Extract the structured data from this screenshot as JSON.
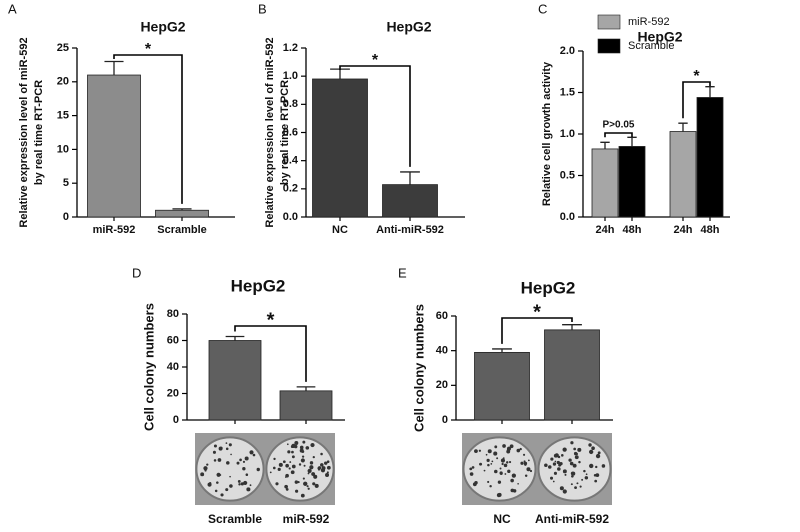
{
  "chart_data": [
    {
      "type": "bar",
      "panel_label": "A",
      "title": "HepG2",
      "ylabel": [
        "Relative expression level of miR-592",
        "by real time RT-PCR"
      ],
      "categories": [
        "miR-592",
        "Scramble"
      ],
      "values": [
        21,
        1
      ],
      "errors": [
        2,
        0.2
      ],
      "color": "#8c8c8c",
      "ylim": [
        0,
        25
      ],
      "yticks": [
        0,
        5,
        10,
        15,
        20,
        25
      ],
      "annotations": [
        "*"
      ]
    },
    {
      "type": "bar",
      "panel_label": "B",
      "title": "HepG2",
      "ylabel": [
        "Relative expression level of miR-592",
        "by real time RT-PCR"
      ],
      "categories": [
        "NC",
        "Anti-miR-592"
      ],
      "values": [
        0.98,
        0.23
      ],
      "errors": [
        0.07,
        0.09
      ],
      "color": "#3c3c3c",
      "ylim": [
        0,
        1.2
      ],
      "yticks": [
        {
          "value": 0,
          "label": "0.0"
        },
        0.2,
        0.4,
        0.6,
        0.8,
        {
          "value": 1,
          "label": "1.0"
        },
        1.2
      ],
      "annotations": [
        "*"
      ]
    },
    {
      "type": "bar",
      "panel_label": "C",
      "title": "HepG2",
      "ylabel": [
        "Relative cell growth activity"
      ],
      "categories": [
        "24h",
        "48h",
        "24h",
        "48h"
      ],
      "series": [
        {
          "name": "miR-592",
          "color": "#a6a6a6",
          "values": [
            0.82,
            null,
            1.03,
            null
          ],
          "errors": [
            0.08,
            null,
            0.1,
            null
          ]
        },
        {
          "name": "Scramble",
          "color": "#000000",
          "values": [
            null,
            0.85,
            null,
            1.44
          ],
          "errors": [
            null,
            0.11,
            null,
            0.13
          ]
        }
      ],
      "ylim": [
        0,
        2
      ],
      "yticks": [
        {
          "value": 0,
          "label": "0.0"
        },
        0.5,
        {
          "value": 1,
          "label": "1.0"
        },
        1.5,
        {
          "value": 2,
          "label": "2.0"
        }
      ],
      "legend": "upper right",
      "annotations": [
        "P>0.05",
        "*"
      ]
    },
    {
      "type": "bar",
      "panel_label": "D",
      "title": "HepG2",
      "ylabel": [
        "Cell colony numbers"
      ],
      "categories": [
        "Scramble",
        "miR-592"
      ],
      "values": [
        60,
        22
      ],
      "errors": [
        3,
        3
      ],
      "color": "#5f5f5f",
      "ylim": [
        0,
        80
      ],
      "yticks": [
        0,
        20,
        40,
        60,
        80
      ],
      "annotations": [
        "*"
      ]
    },
    {
      "type": "bar",
      "panel_label": "E",
      "title": "HepG2",
      "ylabel": [
        "Cell colony numbers"
      ],
      "categories": [
        "NC",
        "Anti-miR-592"
      ],
      "values": [
        39,
        52
      ],
      "errors": [
        2,
        3
      ],
      "color": "#5f5f5f",
      "ylim": [
        0,
        60
      ],
      "yticks": [
        0,
        20,
        40,
        60
      ],
      "annotations": [
        "*"
      ]
    }
  ]
}
